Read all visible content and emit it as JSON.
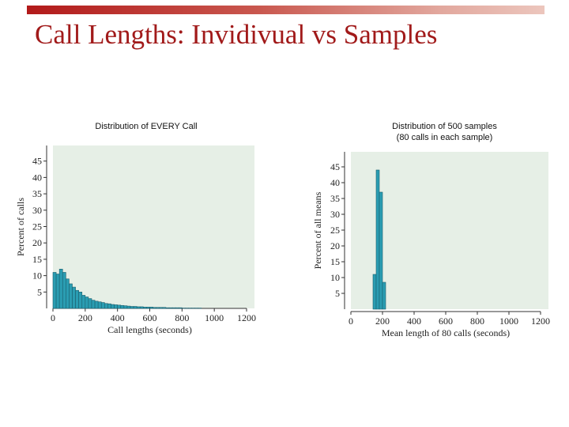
{
  "slide": {
    "title": "Call Lengths: Invidivual vs Samples",
    "accent_color": "#a11a1a"
  },
  "chart_data": [
    {
      "type": "bar",
      "caption": "Distribution of EVERY Call",
      "xlabel": "Call lengths (seconds)",
      "ylabel": "Percent of calls",
      "xlim": [
        0,
        1200
      ],
      "ylim": [
        0,
        48
      ],
      "xticks": [
        0,
        200,
        400,
        600,
        800,
        1000,
        1200
      ],
      "yticks": [
        5,
        10,
        15,
        20,
        25,
        30,
        35,
        40,
        45
      ],
      "bin_width": 20,
      "bins_start": [
        0,
        20,
        40,
        60,
        80,
        100,
        120,
        140,
        160,
        180,
        200,
        220,
        240,
        260,
        280,
        300,
        320,
        340,
        360,
        380,
        400,
        420,
        440,
        460,
        480,
        500,
        520,
        540,
        560,
        580,
        600,
        620,
        640,
        660,
        680,
        700,
        720,
        740,
        760,
        780,
        800,
        820,
        840,
        860,
        880,
        900
      ],
      "values": [
        11,
        10.5,
        12,
        11,
        9,
        7.5,
        6.5,
        5.5,
        5,
        4,
        3.5,
        3,
        2.5,
        2.2,
        2,
        1.8,
        1.5,
        1.4,
        1.2,
        1.1,
        1,
        0.9,
        0.8,
        0.7,
        0.6,
        0.6,
        0.5,
        0.5,
        0.4,
        0.4,
        0.4,
        0.3,
        0.3,
        0.3,
        0.3,
        0.2,
        0.2,
        0.2,
        0.2,
        0.2,
        0.1,
        0.1,
        0.1,
        0.1,
        0.1,
        0.1
      ],
      "bar_color": "#2a9db2",
      "background_color": "#e6efe6"
    },
    {
      "type": "bar",
      "caption": "Distribution of 500 samples\n(80 calls in each sample)",
      "xlabel": "Mean length of 80 calls (seconds)",
      "ylabel": "Percent of all means",
      "xlim": [
        0,
        1200
      ],
      "ylim": [
        0,
        48
      ],
      "xticks": [
        0,
        200,
        400,
        600,
        800,
        1000,
        1200
      ],
      "yticks": [
        5,
        10,
        15,
        20,
        25,
        30,
        35,
        40,
        45
      ],
      "bin_width": 20,
      "bins_start": [
        140,
        160,
        180,
        200
      ],
      "values": [
        11,
        44,
        37,
        8.5
      ],
      "bar_color": "#2a9db2",
      "background_color": "#e6efe6"
    }
  ]
}
